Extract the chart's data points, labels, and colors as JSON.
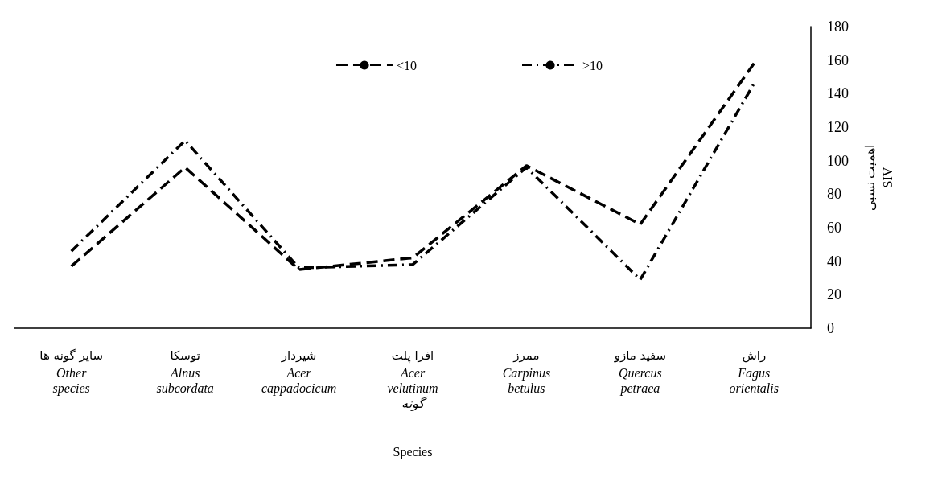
{
  "chart_data": {
    "type": "line",
    "xlabel": "Species",
    "ylabel": "اهمیت نسبی\nSIV",
    "categories": [
      "سایر گونه ها\nOther\nspecies",
      "توسکا\nAlnus\nsubcordata",
      "شیردار\nAcer\ncappadocicum",
      "افرا پلت\nAcer\nvelutinum\nگونه",
      "ممرز\nCarpinus\nbetulus",
      "سفید مازو\nQuercus\npetraea",
      "راش\nFagus\norientalis"
    ],
    "series": [
      {
        "name": "<10",
        "color": "#000000",
        "line_style": "dashed",
        "values": [
          37,
          96,
          35,
          42,
          97,
          62,
          158
        ]
      },
      {
        "name": ">10",
        "color": "#000000",
        "line_style": "dashdot",
        "values": [
          46,
          112,
          36,
          38,
          96,
          29,
          146
        ]
      }
    ],
    "ylim": [
      0,
      180
    ],
    "yticks": [
      0,
      20,
      40,
      60,
      80,
      100,
      120,
      140,
      160,
      180
    ],
    "grid": false,
    "legend": "top",
    "marker": "none"
  }
}
